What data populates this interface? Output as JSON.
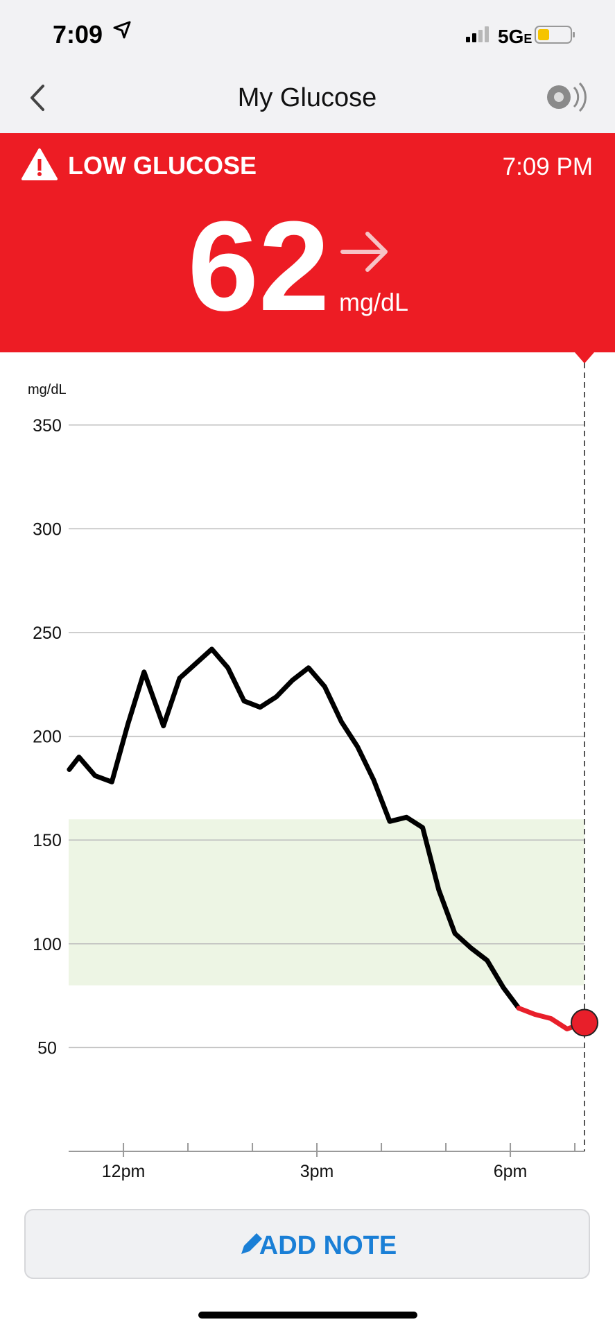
{
  "status_bar": {
    "time": "7:09",
    "network": "5G",
    "network_suffix": "E"
  },
  "nav": {
    "title": "My Glucose"
  },
  "alert": {
    "title": "LOW GLUCOSE",
    "time": "7:09 PM",
    "value": 62,
    "unit": "mg/dL"
  },
  "chart_data": {
    "type": "line",
    "y_label": "mg/dL",
    "x": [
      11.16,
      11.31,
      11.56,
      11.82,
      12.07,
      12.32,
      12.62,
      12.87,
      13.12,
      13.37,
      13.62,
      13.87,
      14.12,
      14.37,
      14.62,
      14.87,
      15.12,
      15.38,
      15.63,
      15.88,
      16.13,
      16.39,
      16.64,
      16.89,
      17.14,
      17.39,
      17.64,
      17.89,
      18.13,
      18.38,
      18.63,
      18.88,
      19.15
    ],
    "series": [
      {
        "color": "#000000",
        "values": [
          184,
          190,
          181,
          178,
          206,
          231,
          205,
          228,
          235,
          242,
          233,
          217,
          214,
          219,
          227,
          233,
          224,
          207,
          195,
          179,
          159,
          161,
          156,
          126,
          105,
          98,
          92,
          79,
          69,
          null,
          null,
          null,
          null
        ]
      },
      {
        "color": "#e81f2a",
        "values": [
          null,
          null,
          null,
          null,
          null,
          null,
          null,
          null,
          null,
          null,
          null,
          null,
          null,
          null,
          null,
          null,
          null,
          null,
          null,
          null,
          null,
          null,
          null,
          null,
          null,
          null,
          null,
          null,
          69,
          66,
          64,
          59,
          62
        ]
      }
    ],
    "xlim": [
      11.15,
      19.15
    ],
    "ylim": [
      0,
      380
    ],
    "xticks": [
      {
        "value": 12,
        "label": "12pm"
      },
      {
        "value": 15,
        "label": "3pm"
      },
      {
        "value": 18,
        "label": "6pm"
      }
    ],
    "xticks_minor": [
      13,
      14,
      16,
      17,
      19
    ],
    "yticks": [
      50,
      100,
      150,
      200,
      250,
      300,
      350
    ],
    "target_range": [
      80,
      160
    ],
    "target_color": "#edf5e4",
    "grid": true
  },
  "button": {
    "label": "ADD NOTE"
  }
}
